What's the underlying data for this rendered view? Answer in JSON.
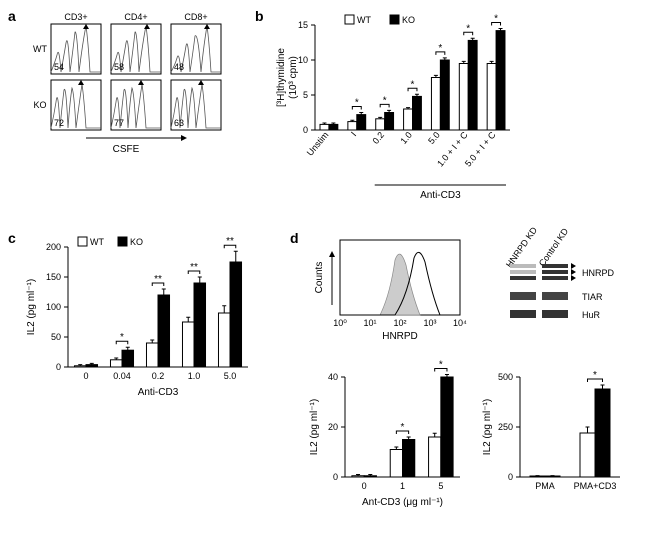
{
  "panel_a": {
    "label": "a",
    "row_labels": [
      "WT",
      "KO"
    ],
    "col_labels": [
      "CD3+",
      "CD4+",
      "CD8+"
    ],
    "values": [
      [
        54,
        58,
        48
      ],
      [
        72,
        77,
        63
      ]
    ],
    "x_axis_label": "CSFE"
  },
  "panel_b": {
    "label": "b",
    "y_label": "[³H]thymidine (10³ cpm)",
    "y_max": 15,
    "y_ticks": [
      0,
      5,
      10,
      15
    ],
    "legend": [
      "WT",
      "KO"
    ],
    "categories": [
      "Unstim",
      "I",
      "0.2",
      "1.0",
      "5.0",
      "1.0 + I + C",
      "5.0 + I + C"
    ],
    "group_label": "Anti-CD3",
    "wt": [
      0.8,
      1.2,
      1.6,
      3.0,
      7.5,
      9.5,
      9.5
    ],
    "ko": [
      0.8,
      2.2,
      2.5,
      4.8,
      10.0,
      12.8,
      14.2
    ],
    "wt_err": [
      0.2,
      0.2,
      0.2,
      0.2,
      0.3,
      0.3,
      0.3
    ],
    "ko_err": [
      0.2,
      0.3,
      0.3,
      0.3,
      0.3,
      0.3,
      0.3
    ],
    "sig": [
      "",
      "*",
      "*",
      "*",
      "*",
      "*",
      "*"
    ]
  },
  "panel_c": {
    "label": "c",
    "y_label": "IL2 (pg ml⁻¹)",
    "y_max": 200,
    "y_ticks": [
      0,
      50,
      100,
      150,
      200
    ],
    "legend": [
      "WT",
      "KO"
    ],
    "categories": [
      "0",
      "0.04",
      "0.2",
      "1.0",
      "5.0"
    ],
    "x_label": "Anti-CD3",
    "wt": [
      2,
      12,
      40,
      75,
      90
    ],
    "ko": [
      4,
      28,
      120,
      140,
      175
    ],
    "wt_err": [
      2,
      3,
      5,
      8,
      12
    ],
    "ko_err": [
      2,
      5,
      10,
      10,
      18
    ],
    "sig": [
      "",
      "*",
      "**",
      "**",
      "**"
    ]
  },
  "panel_d": {
    "label": "d",
    "histogram": {
      "y_label": "Counts",
      "x_label": "HNRPD",
      "x_ticks": [
        "10⁰",
        "10¹",
        "10²",
        "10³",
        "10⁴"
      ]
    },
    "blot": {
      "lanes": [
        "HNRPD KD",
        "Control KD"
      ],
      "bands": [
        "HNRPD",
        "TIAR",
        "HuR"
      ]
    },
    "chart1": {
      "y_label": "IL2 (pg ml⁻¹)",
      "y_ticks": [
        0,
        20,
        40
      ],
      "categories": [
        "0",
        "1",
        "5"
      ],
      "x_label": "Ant-CD3 (μg ml⁻¹)",
      "wt": [
        0.5,
        11,
        16
      ],
      "ko": [
        0.5,
        15,
        40
      ],
      "wt_err": [
        0.5,
        1,
        1.5
      ],
      "ko_err": [
        0.5,
        1,
        1
      ],
      "sig": [
        "",
        "*",
        "*"
      ]
    },
    "chart2": {
      "y_label": "IL2 (pg ml⁻¹)",
      "y_ticks": [
        0,
        250,
        500
      ],
      "categories": [
        "PMA",
        "PMA+CD3"
      ],
      "wt": [
        5,
        220
      ],
      "ko": [
        5,
        440
      ],
      "wt_err": [
        2,
        30
      ],
      "ko_err": [
        2,
        20
      ],
      "sig": [
        "",
        "*"
      ]
    }
  }
}
